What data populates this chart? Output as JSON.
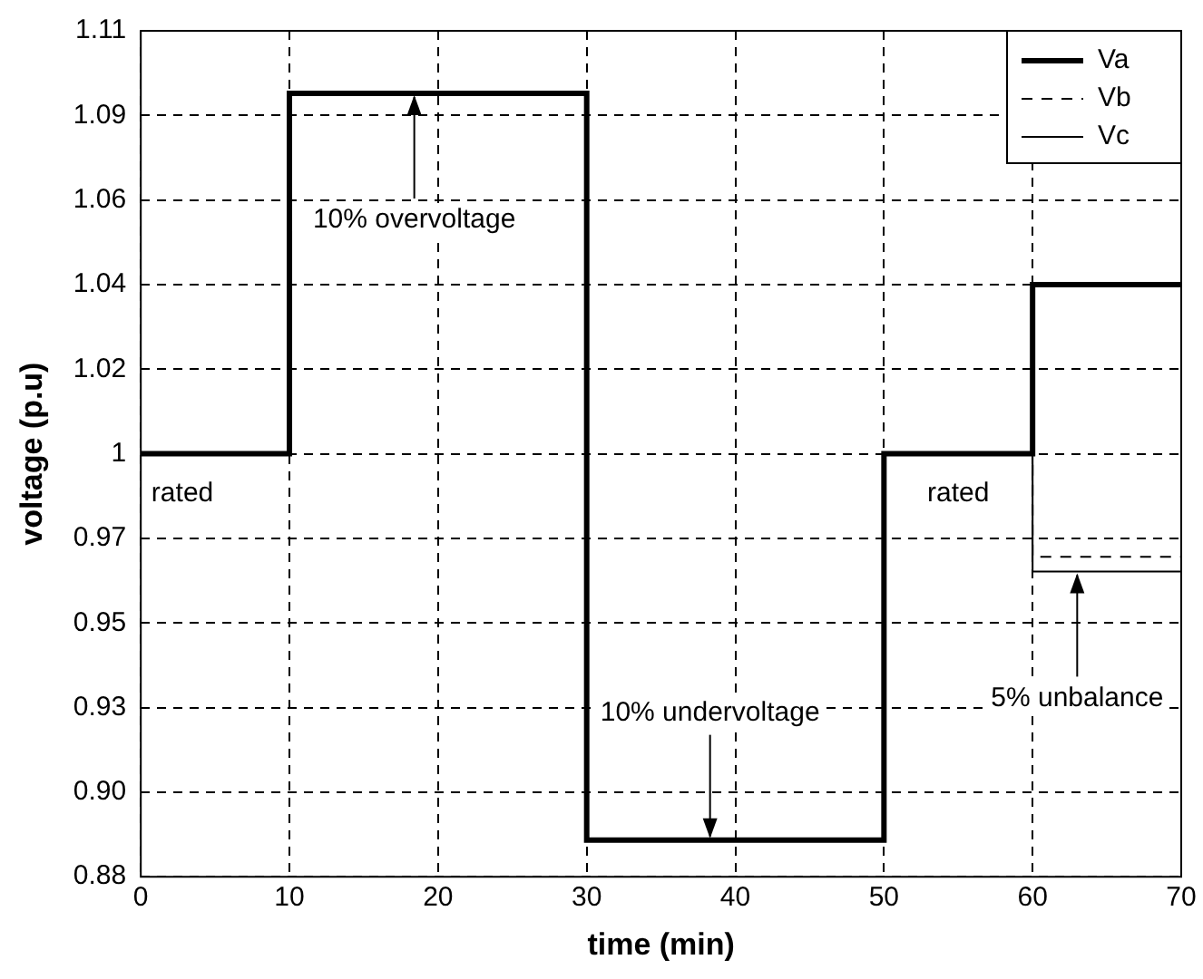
{
  "chart_data": {
    "type": "step",
    "xlabel": "time (min)",
    "ylabel": "voltage (p.u)",
    "x": [
      0,
      10,
      30,
      50,
      60,
      70
    ],
    "series": [
      {
        "name": "Va",
        "color": "#000000",
        "line_style": "solid",
        "values": [
          0.995,
          1.093,
          0.89,
          0.995,
          1.041,
          1.041
        ]
      },
      {
        "name": "Vb",
        "color": "#000000",
        "line_style": "dashed",
        "x": [
          50,
          60,
          70
        ],
        "values": [
          0.995,
          0.967,
          0.967
        ]
      },
      {
        "name": "Vc",
        "color": "#000000",
        "line_style": "solid",
        "x": [
          50,
          60,
          70
        ],
        "values": [
          0.995,
          0.963,
          0.963
        ]
      }
    ],
    "xlim": [
      0,
      70
    ],
    "xticks": [
      0,
      10,
      20,
      30,
      40,
      50,
      60,
      70
    ],
    "ylim": [
      0.88,
      1.11
    ],
    "yticks": [
      {
        "value": 0.88,
        "label": "0.88"
      },
      {
        "value": 0.903,
        "label": "0.90"
      },
      {
        "value": 0.926,
        "label": "0.93"
      },
      {
        "value": 0.949,
        "label": "0.95"
      },
      {
        "value": 0.972,
        "label": "0.97"
      },
      {
        "value": 0.995,
        "label": "1"
      },
      {
        "value": 1.018,
        "label": "1.02"
      },
      {
        "value": 1.041,
        "label": "1.04"
      },
      {
        "value": 1.064,
        "label": "1.06"
      },
      {
        "value": 1.087,
        "label": "1.09"
      },
      {
        "value": 1.11,
        "label": "1.11"
      }
    ],
    "grid": true,
    "legend": "top right",
    "annotations": [
      {
        "text": "rated",
        "x": 2.8,
        "y": 0.995
      },
      {
        "text": "10% overvoltage",
        "x": 18.4,
        "y": 1.093
      },
      {
        "text": "10% undervoltage",
        "x": 38.3,
        "y": 0.89
      },
      {
        "text": "rated",
        "x": 55,
        "y": 0.995
      },
      {
        "text": "5% unbalance",
        "x": 63,
        "y": 0.963
      }
    ]
  }
}
